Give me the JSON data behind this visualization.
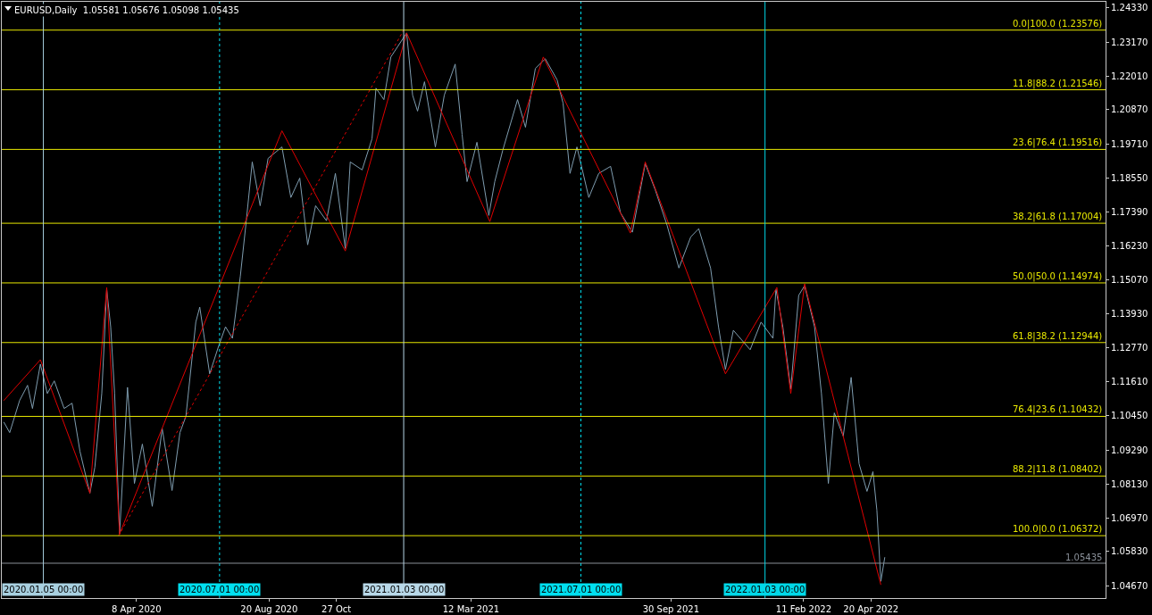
{
  "chart_data": {
    "type": "line",
    "title": "EURUSD,Daily  1.05581 1.05676 1.05098 1.05435",
    "xlim": [
      "2019-11-24",
      "2022-12-13"
    ],
    "xticks": [
      {
        "value": "2020-04-08",
        "label": "8 Apr 2020"
      },
      {
        "value": "2020-08-20",
        "label": "20 Aug 2020"
      },
      {
        "value": "2020-10-27",
        "label": "27 Oct"
      },
      {
        "value": "2021-03-12",
        "label": "12 Mar 2021"
      },
      {
        "value": "2021-09-30",
        "label": "30 Sep 2021"
      },
      {
        "value": "2022-02-11",
        "label": "11 Feb 2022"
      },
      {
        "value": "2022-04-20",
        "label": "20 Apr 2022"
      }
    ],
    "ylim": [
      1.0425,
      1.2454
    ],
    "yticks": [
      {
        "value": 1.0467,
        "label": "1.04670"
      },
      {
        "value": 1.0583,
        "label": "1.05830"
      },
      {
        "value": 1.0697,
        "label": "1.06970"
      },
      {
        "value": 1.0813,
        "label": "1.08130"
      },
      {
        "value": 1.0929,
        "label": "1.09290"
      },
      {
        "value": 1.1045,
        "label": "1.10450"
      },
      {
        "value": 1.1161,
        "label": "1.11610"
      },
      {
        "value": 1.1277,
        "label": "1.12770"
      },
      {
        "value": 1.1393,
        "label": "1.13930"
      },
      {
        "value": 1.1507,
        "label": "1.15070"
      },
      {
        "value": 1.1623,
        "label": "1.16230"
      },
      {
        "value": 1.1739,
        "label": "1.17390"
      },
      {
        "value": 1.1855,
        "label": "1.18550"
      },
      {
        "value": 1.1971,
        "label": "1.19710"
      },
      {
        "value": 1.2087,
        "label": "1.20870"
      },
      {
        "value": 1.2201,
        "label": "1.22010"
      },
      {
        "value": 1.2317,
        "label": "1.23170"
      },
      {
        "value": 1.2433,
        "label": "1.24330"
      }
    ],
    "grid": false,
    "marker": "none",
    "series": [
      {
        "color": "#7f9db0",
        "line_style": "solid",
        "x": [
          "2019-11-26",
          "2019-12-02",
          "2019-12-12",
          "2019-12-20",
          "2019-12-25",
          "2020-01-02",
          "2020-01-09",
          "2020-01-16",
          "2020-01-26",
          "2020-02-03",
          "2020-02-11",
          "2020-02-21",
          "2020-02-26",
          "2020-03-04",
          "2020-03-09",
          "2020-03-13",
          "2020-03-17",
          "2020-03-22",
          "2020-03-30",
          "2020-04-06",
          "2020-04-14",
          "2020-04-24",
          "2020-05-04",
          "2020-05-14",
          "2020-05-22",
          "2020-05-28",
          "2020-06-07",
          "2020-06-11",
          "2020-06-21",
          "2020-06-30",
          "2020-07-07",
          "2020-07-14",
          "2020-07-22",
          "2020-07-28",
          "2020-08-03",
          "2020-08-11",
          "2020-08-19",
          "2020-09-02",
          "2020-09-11",
          "2020-09-20",
          "2020-09-28",
          "2020-10-06",
          "2020-10-17",
          "2020-10-26",
          "2020-11-05",
          "2020-11-10",
          "2020-11-22",
          "2020-12-02",
          "2020-12-06",
          "2020-12-14",
          "2020-12-21",
          "2021-01-06",
          "2021-01-12",
          "2021-01-17",
          "2021-01-24",
          "2021-02-04",
          "2021-02-13",
          "2021-02-24",
          "2021-03-03",
          "2021-03-08",
          "2021-03-18",
          "2021-03-30",
          "2021-04-05",
          "2021-04-13",
          "2021-04-28",
          "2021-05-06",
          "2021-05-16",
          "2021-05-26",
          "2021-06-07",
          "2021-06-13",
          "2021-06-20",
          "2021-06-27",
          "2021-07-09",
          "2021-07-19",
          "2021-07-31",
          "2021-08-10",
          "2021-08-22",
          "2021-09-04",
          "2021-09-14",
          "2021-09-26",
          "2021-10-08",
          "2021-10-20",
          "2021-10-28",
          "2021-11-09",
          "2021-11-17",
          "2021-11-24",
          "2021-12-02",
          "2021-12-19",
          "2021-12-30",
          "2022-01-11",
          "2022-01-14",
          "2022-01-21",
          "2022-01-29",
          "2022-02-06",
          "2022-02-12",
          "2022-02-22",
          "2022-03-01",
          "2022-03-08",
          "2022-03-14",
          "2022-03-23",
          "2022-03-31",
          "2022-04-08",
          "2022-04-16",
          "2022-04-22",
          "2022-04-26",
          "2022-04-30",
          "2022-05-04"
        ],
        "values": [
          1.1024,
          1.0988,
          1.1097,
          1.1149,
          1.107,
          1.1221,
          1.1121,
          1.1164,
          1.107,
          1.1088,
          1.0924,
          1.0782,
          1.087,
          1.1121,
          1.1476,
          1.1348,
          1.1121,
          1.0643,
          1.1142,
          1.0815,
          1.0949,
          1.0737,
          1.1003,
          1.0791,
          1.0988,
          1.1043,
          1.1364,
          1.1415,
          1.1188,
          1.1282,
          1.1348,
          1.1309,
          1.1521,
          1.1709,
          1.1909,
          1.176,
          1.1921,
          1.196,
          1.1788,
          1.1854,
          1.1627,
          1.176,
          1.1709,
          1.187,
          1.1615,
          1.1909,
          1.1882,
          1.1988,
          1.216,
          1.2121,
          1.2266,
          1.2348,
          1.2136,
          1.2082,
          1.2182,
          1.196,
          1.2136,
          1.2242,
          1.2003,
          1.1842,
          1.1976,
          1.1727,
          1.1842,
          1.1948,
          1.2121,
          1.2027,
          1.2227,
          1.226,
          1.2188,
          1.2109,
          1.187,
          1.196,
          1.1788,
          1.187,
          1.1894,
          1.1736,
          1.167,
          1.1903,
          1.1815,
          1.1694,
          1.1548,
          1.1654,
          1.1682,
          1.1548,
          1.1348,
          1.1203,
          1.1336,
          1.127,
          1.1364,
          1.1309,
          1.1476,
          1.1348,
          1.1136,
          1.1455,
          1.1488,
          1.1348,
          1.1121,
          1.0815,
          1.1055,
          1.0976,
          1.1176,
          1.0882,
          1.0788,
          1.0855,
          1.0724,
          1.0482,
          1.0564
        ]
      },
      {
        "color": "#e00000",
        "line_style": "solid",
        "x": [
          "2019-11-26",
          "2020-01-02",
          "2020-02-21",
          "2020-03-09",
          "2020-03-22",
          "2020-09-02",
          "2020-11-05",
          "2021-01-06",
          "2021-03-31",
          "2021-05-24",
          "2021-08-20",
          "2021-09-04",
          "2021-11-24",
          "2022-01-15",
          "2022-01-29",
          "2022-02-12",
          "2022-04-30"
        ],
        "values": [
          1.1097,
          1.1236,
          1.0782,
          1.1482,
          1.0643,
          1.2015,
          1.1606,
          1.2348,
          1.1706,
          1.2266,
          1.1667,
          1.1909,
          1.1188,
          1.1482,
          1.1121,
          1.1494,
          1.047
        ]
      },
      {
        "color": "#e00000",
        "line_style": "dotted",
        "x": [
          "2020-03-21",
          "2021-01-03"
        ],
        "values": [
          1.0637,
          1.2358
        ]
      }
    ],
    "ref_lines": [
      {
        "axis": "y",
        "value": 1.23576,
        "label": "0.0|100.0 (1.23576)",
        "color": "#e8e800",
        "line_style": "solid"
      },
      {
        "axis": "y",
        "value": 1.21546,
        "label": "11.8|88.2 (1.21546)",
        "color": "#e8e800",
        "line_style": "solid"
      },
      {
        "axis": "y",
        "value": 1.19516,
        "label": "23.6|76.4 (1.19516)",
        "color": "#e8e800",
        "line_style": "solid"
      },
      {
        "axis": "y",
        "value": 1.17004,
        "label": "38.2|61.8 (1.17004)",
        "color": "#e8e800",
        "line_style": "solid"
      },
      {
        "axis": "y",
        "value": 1.14974,
        "label": "50.0|50.0 (1.14974)",
        "color": "#e8e800",
        "line_style": "solid"
      },
      {
        "axis": "y",
        "value": 1.12944,
        "label": "61.8|38.2 (1.12944)",
        "color": "#e8e800",
        "line_style": "solid"
      },
      {
        "axis": "y",
        "value": 1.10432,
        "label": "76.4|23.6 (1.10432)",
        "color": "#e8e800",
        "line_style": "solid"
      },
      {
        "axis": "y",
        "value": 1.08402,
        "label": "88.2|11.8 (1.08402)",
        "color": "#e8e800",
        "line_style": "solid"
      },
      {
        "axis": "y",
        "value": 1.06372,
        "label": "100.0|0.0 (1.06372)",
        "color": "#e8e800",
        "line_style": "solid"
      },
      {
        "axis": "y",
        "value": 1.05435,
        "label": "1.05435",
        "color": "#8a9099",
        "line_style": "solid"
      },
      {
        "axis": "x",
        "value": "2020-01-05",
        "label": "2020.01.05 00:00",
        "color": "#a8d0e0",
        "line_style": "solid"
      },
      {
        "axis": "x",
        "value": "2020-07-01",
        "label": "2020.07.01 00:00",
        "color": "#00e0f0",
        "line_style": "dotted"
      },
      {
        "axis": "x",
        "value": "2021-01-03",
        "label": "2021.01.03 00:00",
        "color": "#b8d8e8",
        "line_style": "solid"
      },
      {
        "axis": "x",
        "value": "2021-07-01",
        "label": "2021.07.01 00:00",
        "color": "#00e0f0",
        "line_style": "dotted"
      },
      {
        "axis": "x",
        "value": "2022-01-03",
        "label": "2022.01.03 00:00",
        "color": "#00d8e8",
        "line_style": "solid"
      }
    ]
  }
}
